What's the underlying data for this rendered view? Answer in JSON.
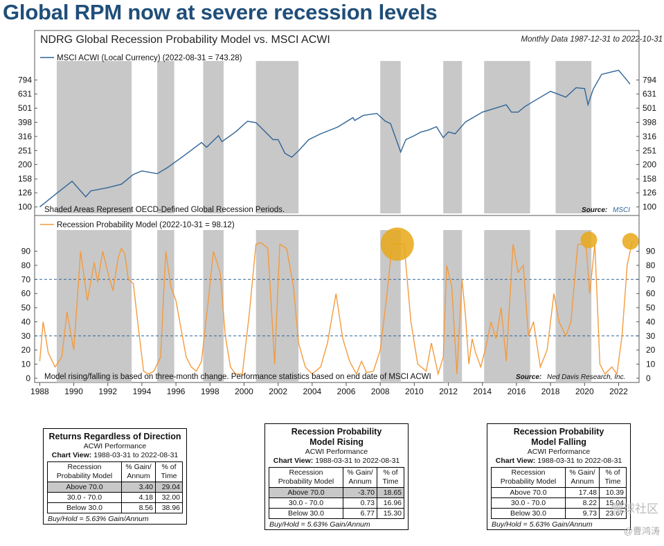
{
  "headline": "Global RPM now at severe recession levels",
  "chart_data": {
    "type": "line",
    "title": "NDRG Global Recession Probability Model vs. MSCI ACWI",
    "subtitle": "Monthly Data 1987-12-31 to 2022-10-31",
    "x_range": [
      1987.7,
      2023.2
    ],
    "x_ticks": [
      "1988",
      "1990",
      "1992",
      "1994",
      "1996",
      "1998",
      "2000",
      "2002",
      "2004",
      "2006",
      "2008",
      "2010",
      "2012",
      "2014",
      "2016",
      "2018",
      "2020",
      "2022"
    ],
    "recession_periods": [
      [
        1989.0,
        1993.4
      ],
      [
        1994.9,
        1995.9
      ],
      [
        1997.6,
        1998.8
      ],
      [
        2000.7,
        2003.2
      ],
      [
        2008.0,
        2009.2
      ],
      [
        2011.7,
        2012.8
      ],
      [
        2014.1,
        2016.8
      ],
      [
        2018.3,
        2020.4
      ]
    ],
    "top_panel": {
      "legend": "MSCI ACWI (Local Currency) (2022-08-31 = 743.28)",
      "yscale": "log",
      "ylim": [
        90,
        1000
      ],
      "yticks": [
        "100",
        "126",
        "158",
        "200",
        "251",
        "316",
        "398",
        "501",
        "631",
        "794"
      ],
      "note": "Shaded Areas Represent OECD-Defined Global Recession Periods.",
      "source_label": "Source:",
      "source_name": "MSCI",
      "series": {
        "x": [
          1988.0,
          1989.0,
          1989.9,
          1990.7,
          1991.0,
          1992.0,
          1992.8,
          1993.5,
          1994.0,
          1994.9,
          1995.5,
          1996.5,
          1997.5,
          1997.8,
          1998.5,
          1998.7,
          1999.5,
          2000.2,
          2000.7,
          2001.2,
          2001.7,
          2002.0,
          2002.4,
          2002.8,
          2003.2,
          2003.8,
          2004.5,
          2005.5,
          2006.4,
          2006.5,
          2007.0,
          2007.8,
          2008.3,
          2008.6,
          2009.2,
          2009.5,
          2010.0,
          2010.4,
          2010.8,
          2011.3,
          2011.7,
          2012.0,
          2012.4,
          2013.0,
          2014.0,
          2014.5,
          2015.4,
          2015.7,
          2016.1,
          2016.5,
          2017.0,
          2018.0,
          2018.9,
          2019.5,
          2020.0,
          2020.2,
          2020.5,
          2021.0,
          2021.5,
          2022.0,
          2022.45,
          2022.67
        ],
        "y": [
          100,
          125,
          152,
          118,
          130,
          137,
          145,
          170,
          180,
          172,
          190,
          232,
          286,
          265,
          320,
          290,
          340,
          405,
          396,
          345,
          300,
          300,
          240,
          225,
          250,
          300,
          330,
          368,
          430,
          410,
          445,
          460,
          405,
          390,
          245,
          300,
          320,
          340,
          350,
          370,
          310,
          340,
          330,
          400,
          470,
          490,
          530,
          470,
          470,
          515,
          560,
          660,
          600,
          700,
          690,
          530,
          680,
          870,
          900,
          930,
          800,
          743
        ]
      }
    },
    "bottom_panel": {
      "legend": "Recession Probability Model (2022-10-31 = 98.12)",
      "ylim": [
        -3,
        105
      ],
      "yticks": [
        "0",
        "10",
        "20",
        "30",
        "40",
        "50",
        "60",
        "70",
        "80",
        "90"
      ],
      "reference_lines": [
        30,
        70
      ],
      "note": "Model rising/falling is based on three-month change. Performance statistics based on end date of MSCI ACWI",
      "source_label": "Source:",
      "source_name": "Ned Davis Research, Inc.",
      "highlight_points": [
        [
          2009.0,
          95
        ],
        [
          2020.25,
          98
        ],
        [
          2022.7,
          97
        ]
      ],
      "series": {
        "x": [
          1988.0,
          1988.2,
          1988.5,
          1988.9,
          1989.3,
          1989.6,
          1990.0,
          1990.4,
          1990.8,
          1991.2,
          1991.4,
          1991.7,
          1992.0,
          1992.3,
          1992.6,
          1992.8,
          1993.0,
          1993.2,
          1993.5,
          1993.8,
          1994.1,
          1994.4,
          1994.7,
          1995.1,
          1995.4,
          1995.7,
          1996.0,
          1996.3,
          1996.6,
          1996.9,
          1997.2,
          1997.5,
          1997.9,
          1998.2,
          1998.6,
          1998.9,
          1999.2,
          1999.5,
          1999.9,
          2000.3,
          2000.7,
          2001.0,
          2001.4,
          2001.8,
          2002.1,
          2002.5,
          2002.9,
          2003.2,
          2003.6,
          2004.0,
          2004.5,
          2004.9,
          2005.4,
          2005.8,
          2006.2,
          2006.6,
          2006.9,
          2007.2,
          2007.6,
          2008.0,
          2008.4,
          2008.7,
          2009.1,
          2009.4,
          2009.8,
          2010.2,
          2010.7,
          2011.0,
          2011.4,
          2011.7,
          2011.9,
          2012.2,
          2012.5,
          2012.8,
          2013.0,
          2013.2,
          2013.4,
          2013.6,
          2013.9,
          2014.2,
          2014.5,
          2014.8,
          2015.1,
          2015.4,
          2015.8,
          2016.1,
          2016.4,
          2016.7,
          2017.0,
          2017.4,
          2017.8,
          2018.2,
          2018.5,
          2018.9,
          2019.2,
          2019.6,
          2019.9,
          2020.1,
          2020.3,
          2020.6,
          2020.9,
          2021.2,
          2021.6,
          2021.9,
          2022.2,
          2022.5,
          2022.8
        ],
        "y": [
          12,
          40,
          18,
          8,
          15,
          47,
          20,
          90,
          55,
          82,
          68,
          90,
          75,
          62,
          85,
          92,
          88,
          70,
          67,
          35,
          5,
          3,
          5,
          15,
          90,
          65,
          55,
          35,
          15,
          8,
          5,
          12,
          55,
          90,
          75,
          30,
          8,
          3,
          3,
          45,
          95,
          96,
          92,
          10,
          95,
          92,
          65,
          25,
          8,
          3,
          8,
          25,
          60,
          28,
          12,
          3,
          12,
          4,
          5,
          20,
          60,
          95,
          95,
          95,
          40,
          10,
          5,
          25,
          3,
          15,
          80,
          65,
          3,
          70,
          45,
          10,
          28,
          18,
          8,
          22,
          40,
          28,
          50,
          12,
          95,
          75,
          80,
          30,
          40,
          8,
          20,
          60,
          40,
          30,
          40,
          95,
          95,
          92,
          60,
          95,
          10,
          3,
          8,
          3,
          30,
          80,
          97
        ]
      }
    }
  },
  "tables": [
    {
      "title": "Returns Regardless of Direction",
      "subtitle": "ACWI Performance",
      "view_label": "Chart View:",
      "view_range": "1988-03-31 to 2022-08-31",
      "headers": [
        "Recession Probability Model",
        "% Gain/ Annum",
        "% of Time"
      ],
      "rows": [
        {
          "label": "Above 70.0",
          "gain": "3.40",
          "time": "29.04",
          "highlight": true
        },
        {
          "label": "30.0 - 70.0",
          "gain": "4.18",
          "time": "32.00",
          "highlight": false
        },
        {
          "label": "Below 30.0",
          "gain": "8.56",
          "time": "38.96",
          "highlight": false
        }
      ],
      "footer": "Buy/Hold = 5.63% Gain/Annum"
    },
    {
      "title": "Recession Probability Model Rising",
      "subtitle": "ACWI Performance",
      "view_label": "Chart View:",
      "view_range": "1988-03-31 to 2022-08-31",
      "headers": [
        "Recession Probability Model",
        "% Gain/ Annum",
        "% of Time"
      ],
      "rows": [
        {
          "label": "Above 70.0",
          "gain": "-3.70",
          "time": "18.65",
          "highlight": true
        },
        {
          "label": "30.0 - 70.0",
          "gain": "0.73",
          "time": "16.96",
          "highlight": false
        },
        {
          "label": "Below 30.0",
          "gain": "6.77",
          "time": "15.30",
          "highlight": false
        }
      ],
      "footer": "Buy/Hold = 5.63% Gain/Annum"
    },
    {
      "title": "Recession Probability Model Falling",
      "subtitle": "ACWI Performance",
      "view_label": "Chart View:",
      "view_range": "1988-03-31 to 2022-08-31",
      "headers": [
        "Recession Probability Model",
        "% Gain/ Annum",
        "% of Time"
      ],
      "rows": [
        {
          "label": "Above 70.0",
          "gain": "17.48",
          "time": "10.39",
          "highlight": false
        },
        {
          "label": "30.0 - 70.0",
          "gain": "8.22",
          "time": "15.04",
          "highlight": false
        },
        {
          "label": "Below 30.0",
          "gain": "9.73",
          "time": "23.67",
          "highlight": false
        }
      ],
      "footer": "Buy/Hold = 5.63% Gain/Annum"
    }
  ],
  "watermark": "雪球社区",
  "watermark_author": "@曹鸿涛",
  "colors": {
    "headline": "#1f4e79",
    "acwi_line": "#2f6496",
    "rpm_line": "#f39a3c",
    "recession_shade": "#c8c8c8",
    "highlight_circle": "#e6a817",
    "reference_line": "#2f6496"
  }
}
